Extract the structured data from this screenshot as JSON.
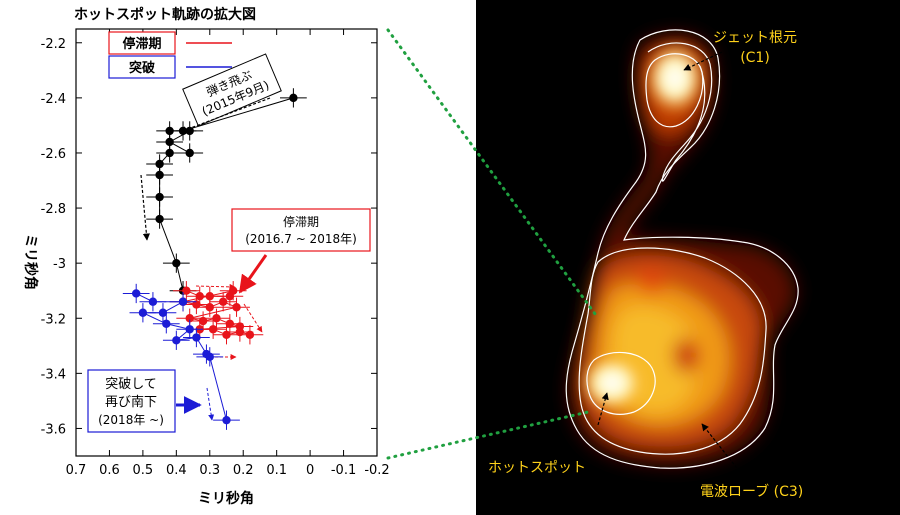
{
  "chart_data": {
    "type": "scatter",
    "title": "ホットスポット軌跡の拡大図",
    "xlabel": "ミリ秒角",
    "ylabel": "ミリ秒角",
    "xlim": [
      0.7,
      -0.2
    ],
    "ylim": [
      -2.15,
      -3.7
    ],
    "x_ticks": [
      0.7,
      0.6,
      0.5,
      0.4,
      0.3,
      0.2,
      0.1,
      0,
      -0.1,
      -0.2
    ],
    "x_tick_labels": [
      "0.7",
      "0.6",
      "0.5",
      "0.4",
      "0.3",
      "0.2",
      "0.1",
      "0",
      "-0.1",
      "-0.2"
    ],
    "y_ticks": [
      -2.2,
      -2.4,
      -2.6,
      -2.8,
      -3.0,
      -3.2,
      -3.4,
      -3.6
    ],
    "y_tick_labels": [
      "-2.2",
      "-2.4",
      "-2.6",
      "-2.8",
      "-3",
      "-3.2",
      "-3.4",
      "-3.6"
    ],
    "legend": {
      "position": "top-left",
      "entries": [
        {
          "label": "停滞期",
          "color": "#e8141b"
        },
        {
          "label": "突破",
          "color": "#1c1cd6"
        }
      ]
    },
    "series": [
      {
        "name": "弾き飛ぶ",
        "color": "#000000",
        "points": [
          {
            "x": 0.05,
            "y": -2.4
          },
          {
            "x": 0.38,
            "y": -2.52
          },
          {
            "x": 0.42,
            "y": -2.52
          },
          {
            "x": 0.36,
            "y": -2.52
          },
          {
            "x": 0.42,
            "y": -2.56
          },
          {
            "x": 0.36,
            "y": -2.6
          },
          {
            "x": 0.42,
            "y": -2.6
          },
          {
            "x": 0.45,
            "y": -2.64
          },
          {
            "x": 0.45,
            "y": -2.68
          },
          {
            "x": 0.45,
            "y": -2.76
          },
          {
            "x": 0.45,
            "y": -2.84
          },
          {
            "x": 0.4,
            "y": -3.0
          },
          {
            "x": 0.38,
            "y": -3.1
          }
        ]
      },
      {
        "name": "停滞期",
        "color": "#e8141b",
        "points": [
          {
            "x": 0.37,
            "y": -3.1
          },
          {
            "x": 0.33,
            "y": -3.12
          },
          {
            "x": 0.3,
            "y": -3.12
          },
          {
            "x": 0.24,
            "y": -3.12
          },
          {
            "x": 0.23,
            "y": -3.1
          },
          {
            "x": 0.38,
            "y": -3.14
          },
          {
            "x": 0.34,
            "y": -3.15
          },
          {
            "x": 0.3,
            "y": -3.16
          },
          {
            "x": 0.26,
            "y": -3.14
          },
          {
            "x": 0.22,
            "y": -3.16
          },
          {
            "x": 0.36,
            "y": -3.2
          },
          {
            "x": 0.32,
            "y": -3.21
          },
          {
            "x": 0.28,
            "y": -3.2
          },
          {
            "x": 0.24,
            "y": -3.22
          },
          {
            "x": 0.21,
            "y": -3.23
          },
          {
            "x": 0.33,
            "y": -3.24
          },
          {
            "x": 0.29,
            "y": -3.24
          },
          {
            "x": 0.25,
            "y": -3.26
          },
          {
            "x": 0.21,
            "y": -3.25
          },
          {
            "x": 0.18,
            "y": -3.26
          }
        ]
      },
      {
        "name": "突破",
        "color": "#1c1cd6",
        "points": [
          {
            "x": 0.52,
            "y": -3.11
          },
          {
            "x": 0.47,
            "y": -3.14
          },
          {
            "x": 0.38,
            "y": -3.14
          },
          {
            "x": 0.44,
            "y": -3.18
          },
          {
            "x": 0.5,
            "y": -3.18
          },
          {
            "x": 0.43,
            "y": -3.22
          },
          {
            "x": 0.36,
            "y": -3.24
          },
          {
            "x": 0.4,
            "y": -3.28
          },
          {
            "x": 0.34,
            "y": -3.27
          },
          {
            "x": 0.31,
            "y": -3.33
          },
          {
            "x": 0.3,
            "y": -3.34
          },
          {
            "x": 0.25,
            "y": -3.57
          }
        ]
      }
    ],
    "annotations": [
      {
        "text": "弾き飛ぶ",
        "text2": "(2015年9月)"
      },
      {
        "text": "停滞期",
        "text2": "(2016.7 ~ 2018年)"
      },
      {
        "text": "突破して",
        "text2": "再び南下",
        "text3": "(2018年 ~)"
      }
    ]
  },
  "image_labels": {
    "jet_base": "ジェット根元",
    "jet_base_id": "(C1)",
    "hotspot": "ホットスポット",
    "radio_lobe": "電波ローブ (C3)"
  }
}
